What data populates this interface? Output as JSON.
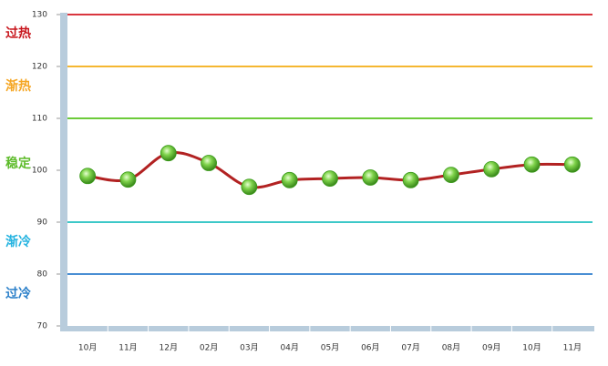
{
  "chart_data": {
    "type": "line",
    "categories": [
      "10月",
      "11月",
      "12月",
      "02月",
      "03月",
      "04月",
      "05月",
      "06月",
      "07月",
      "08月",
      "09月",
      "10月",
      "11月"
    ],
    "series": [
      {
        "values": [
          98.9,
          98.2,
          103.3,
          101.4,
          96.8,
          98.1,
          98.4,
          98.6,
          98.1,
          99.1,
          100.2,
          101.1,
          101.1
        ],
        "color": "#b22222",
        "marker_color": "#3a9a1a"
      }
    ],
    "ylim": [
      70,
      130
    ],
    "yticks": [
      70,
      80,
      90,
      100,
      110,
      120,
      130
    ],
    "reference_lines": [
      {
        "value": 130,
        "color": "#d9363e"
      },
      {
        "value": 120,
        "color": "#f5b731"
      },
      {
        "value": 110,
        "color": "#6ccb3a"
      },
      {
        "value": 90,
        "color": "#3dc8c8"
      },
      {
        "value": 80,
        "color": "#4a8fd4"
      }
    ],
    "zones": [
      {
        "label": "过热",
        "color": "#c8161d"
      },
      {
        "label": "渐热",
        "color": "#f5a623"
      },
      {
        "label": "稳定",
        "color": "#5dbb2a"
      },
      {
        "label": "渐冷",
        "color": "#25b3e0"
      },
      {
        "label": "过冷",
        "color": "#2a7fc9"
      }
    ]
  }
}
